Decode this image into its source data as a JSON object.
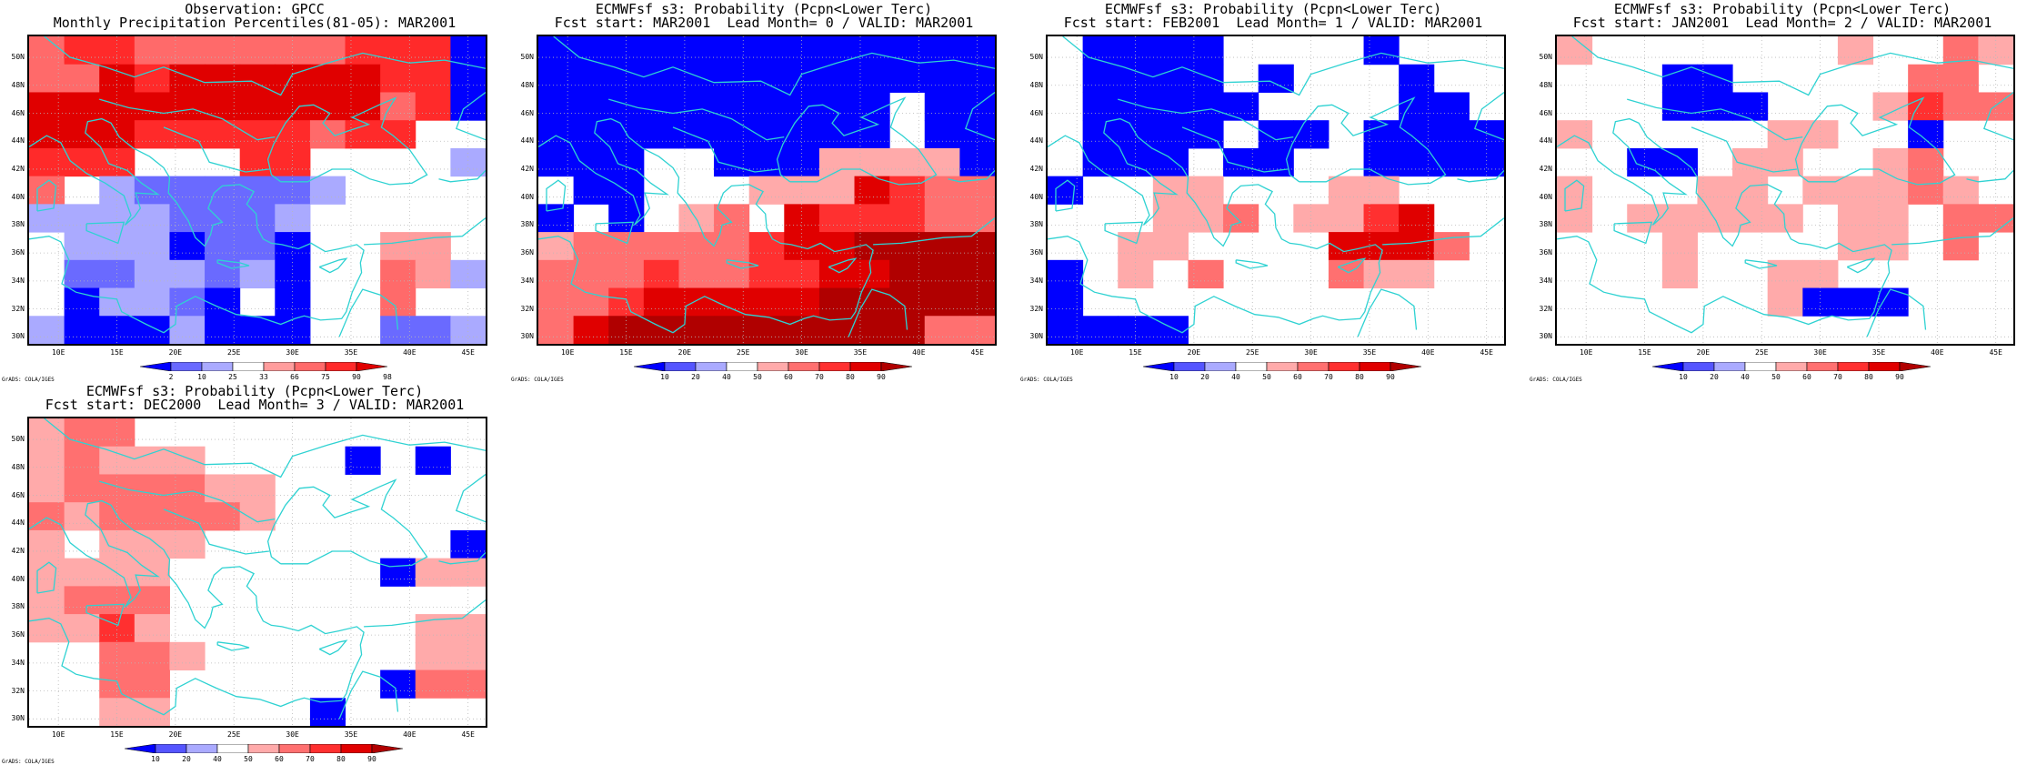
{
  "map_extent": {
    "lon_min": 7.5,
    "lon_max": 46.5,
    "lat_min": 29.5,
    "lat_max": 51.5
  },
  "lon_ticks": [
    "10E",
    "15E",
    "20E",
    "25E",
    "30E",
    "35E",
    "40E",
    "45E"
  ],
  "lon_tick_values": [
    10,
    15,
    20,
    25,
    30,
    35,
    40,
    45
  ],
  "lat_ticks": [
    "30N",
    "32N",
    "34N",
    "36N",
    "38N",
    "40N",
    "42N",
    "44N",
    "46N",
    "48N",
    "50N"
  ],
  "lat_tick_values": [
    30,
    32,
    34,
    36,
    38,
    40,
    42,
    44,
    46,
    48,
    50
  ],
  "credit": "GrADS: COLA/IGES",
  "coastline_color": "#2fd2d2",
  "panels": [
    {
      "id": "obs",
      "title_line1": "Observation: GPCC",
      "title_line2": "Monthly Precipitation Percentiles(81-05): MAR2001",
      "legend_labels": [
        "2",
        "10",
        "25",
        "33",
        "66",
        "75",
        "90",
        "98"
      ],
      "legend_colors": [
        "#0000ff",
        "#6a6aff",
        "#aaaaff",
        "#ffffff",
        "#ff9d9d",
        "#ff6a6a",
        "#ff2a2a",
        "#e00000"
      ],
      "grid_colors": [
        "#0000ff",
        "#6a6aff",
        "#aaaaff",
        "#ffffff",
        "#ff9d9d",
        "#ff6a6a",
        "#ff2a2a",
        "#e00000"
      ],
      "grid": [
        "5665555556660",
        "5576777777660",
        "7777777777560",
        "7776666656633",
        "6663336633332",
        "5321111123333",
        "2222111233333",
        "3222011033443",
        "3112212033542",
        "3022103033533",
        "2000200033112"
      ]
    },
    {
      "id": "m0",
      "title_line1": "ECMWFsf s3: Probability (Pcpn<Lower Terc)",
      "title_line2": "Fcst start: MAR2001  Lead Month= 0 / VALID: MAR2001",
      "legend_labels": [
        "10",
        "20",
        "40",
        "50",
        "60",
        "70",
        "80",
        "90"
      ],
      "legend_colors": [
        "#0000ff",
        "#5555ff",
        "#aaaaff",
        "#ffffff",
        "#ffaaaa",
        "#ff7070",
        "#ff3030",
        "#e00000",
        "#b00000"
      ],
      "grid_colors": [
        "#0000ff",
        "#ffffff",
        "#ffaaaa",
        "#ff7070",
        "#ff3030",
        "#e00000",
        "#b00000"
      ],
      "grid": [
        "0000000000000",
        "0000000000000",
        "0000000000100",
        "0000000000100",
        "0001100022220",
        "1001112225433",
        "0101231544433",
        "2333334556666",
        "3334334455666",
        "3345555566666",
        "3566666666633"
      ]
    },
    {
      "id": "m1",
      "title_line1": "ECMWFsf s3: Probability (Pcpn<Lower Terc)",
      "title_line2": "Fcst start: FEB2001  Lead Month= 1 / VALID: MAR2001",
      "legend_labels": [
        "10",
        "20",
        "40",
        "50",
        "60",
        "70",
        "80",
        "90"
      ],
      "legend_colors": [
        "#0000ff",
        "#5555ff",
        "#aaaaff",
        "#ffffff",
        "#ffaaaa",
        "#ff7070",
        "#ff3030",
        "#e00000",
        "#b00000"
      ],
      "grid_colors": [
        "#0000ff",
        "#ffffff",
        "#ffaaaa",
        "#ff7070",
        "#ff3030",
        "#e00000",
        "#b00000"
      ],
      "grid": [
        "1000011110111",
        "1000010111011",
        "1000001111001",
        "1000010010000",
        "1000100110000",
        "0112211122111",
        "1112231224511",
        "1122111155531",
        "0121311132211",
        "0111111111111",
        "0000111111111"
      ]
    },
    {
      "id": "m2",
      "title_line1": "ECMWFsf s3: Probability (Pcpn<Lower Terc)",
      "title_line2": "Fcst start: JAN2001  Lead Month= 2 / VALID: MAR2001",
      "legend_labels": [
        "10",
        "20",
        "40",
        "50",
        "60",
        "70",
        "80",
        "90"
      ],
      "legend_colors": [
        "#0000ff",
        "#5555ff",
        "#aaaaff",
        "#ffffff",
        "#ffaaaa",
        "#ff7070",
        "#ff3030",
        "#e00000",
        "#b00000"
      ],
      "grid_colors": [
        "#0000ff",
        "#ffffff",
        "#ffaaaa",
        "#ff7070",
        "#ff3030",
        "#e00000",
        "#b00000"
      ],
      "grid": [
        "2111111121132",
        "1110011111331",
        "1110001112433",
        "2111112211011",
        "1100122112311",
        "2111221222321",
        "2122222122133",
        "1112111122131",
        "1112112211111",
        "1111112000111",
        "1111111111111"
      ]
    },
    {
      "id": "m3",
      "title_line1": "ECMWFsf s3: Probability (Pcpn<Lower Terc)",
      "title_line2": "Fcst start: DEC2000  Lead Month= 3 / VALID: MAR2001",
      "legend_labels": [
        "10",
        "20",
        "40",
        "50",
        "60",
        "70",
        "80",
        "90"
      ],
      "legend_colors": [
        "#0000ff",
        "#5555ff",
        "#aaaaff",
        "#ffffff",
        "#ffaaaa",
        "#ff7070",
        "#ff3030",
        "#e00000",
        "#b00000"
      ],
      "grid_colors": [
        "#0000ff",
        "#ffffff",
        "#ffaaaa",
        "#ff7070",
        "#ff3030",
        "#e00000",
        "#b00000"
      ],
      "grid": [
        "2331111111111",
        "2322211110101",
        "2333322111111",
        "3233332111111",
        "2122211111110",
        "2222111111022",
        "2333111111111",
        "2242111111122",
        "1133211111122",
        "1133111111033",
        "1122111101111"
      ]
    }
  ]
}
